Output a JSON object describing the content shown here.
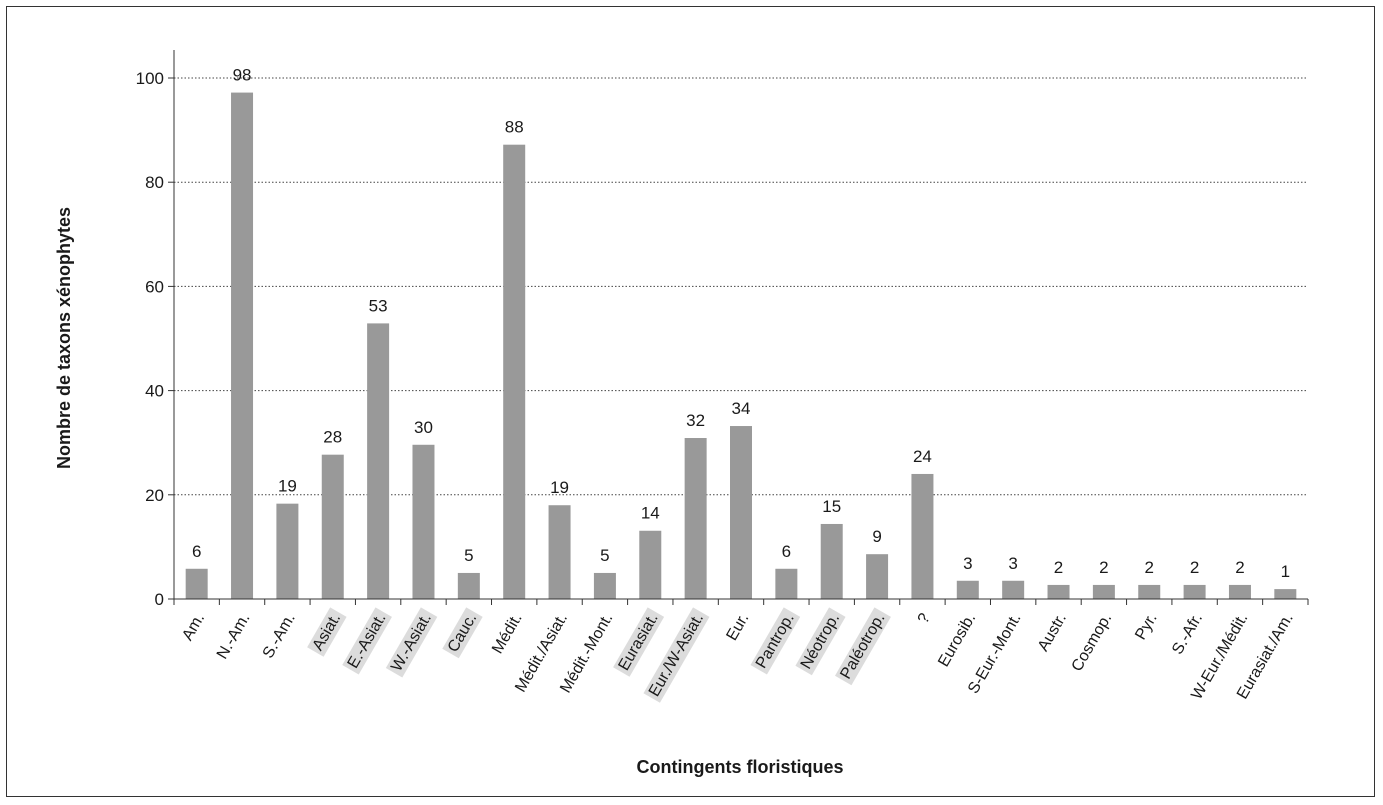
{
  "chart_data": {
    "type": "bar",
    "title": "",
    "xlabel": "Contingents floristiques",
    "ylabel": "Nombre de taxons xénophytes",
    "ylim": [
      0,
      100
    ],
    "yticks": [
      0,
      20,
      40,
      60,
      80,
      100
    ],
    "grid": "horizontal-dotted",
    "bar_color": "#999999",
    "highlight_color": "#dcdcdc",
    "categories": [
      "Am.",
      "N.-Am.",
      "S.-Am.",
      "Asiat.",
      "E.-Asiat.",
      "W.-Asiat.",
      "Cauc.",
      "Médit.",
      "Médit./Asiat.",
      "Médit.-Mont.",
      "Eurasiat.",
      "Eur./W-Asiat.",
      "Eur.",
      "Pantrop.",
      "Néotrop.",
      "Paléotrop.",
      "?",
      "Eurosib.",
      "S-Eur.-Mont.",
      "Austr.",
      "Cosmop.",
      "Pyr.",
      "S.-Afr.",
      "W-Eur./Médit.",
      "Eurasiat./Am."
    ],
    "values": [
      6,
      98,
      19,
      28,
      53,
      30,
      5,
      88,
      19,
      5,
      14,
      32,
      34,
      6,
      15,
      9,
      24,
      3,
      3,
      2,
      2,
      2,
      2,
      2,
      1
    ],
    "plotted_heights": [
      5.8,
      97.2,
      18.3,
      27.7,
      52.9,
      29.6,
      5.0,
      87.2,
      18.0,
      5.0,
      13.1,
      30.9,
      33.2,
      5.8,
      14.4,
      8.6,
      24.0,
      3.5,
      3.5,
      2.7,
      2.7,
      2.7,
      2.7,
      2.7,
      1.9
    ],
    "highlighted": [
      false,
      false,
      false,
      true,
      true,
      true,
      true,
      false,
      false,
      false,
      true,
      true,
      false,
      true,
      true,
      true,
      false,
      false,
      false,
      false,
      false,
      false,
      false,
      false,
      false
    ]
  }
}
